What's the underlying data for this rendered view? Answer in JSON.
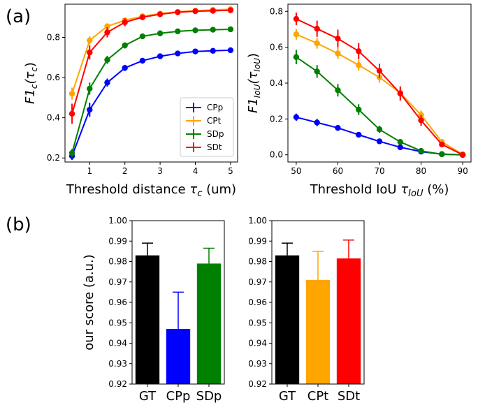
{
  "panel_labels": [
    "(a)",
    "(b)"
  ],
  "chart_data": [
    {
      "type": "line",
      "panel": "(a)",
      "xlabel": "Threshold distance τc (um)",
      "xlabel_main": "Threshold distance ",
      "xlabel_symbol": "τ",
      "xlabel_sub": "c",
      "xlabel_unit": " (um)",
      "ylabel": "F1c(τc)",
      "ylabel_main": "F1",
      "ylabel_sub": "c",
      "ylabel_paren_open": "(τ",
      "ylabel_paren_sub": "c",
      "ylabel_paren_close": ")",
      "xlim": [
        0.3,
        5.2
      ],
      "ylim": [
        0.18,
        0.965
      ],
      "xticks": [
        1,
        2,
        3,
        4,
        5
      ],
      "yticks": [
        0.2,
        0.4,
        0.6,
        0.8
      ],
      "x": [
        0.5,
        1.0,
        1.5,
        2.0,
        2.5,
        3.0,
        3.5,
        4.0,
        4.5,
        5.0
      ],
      "legend_position": "lower-right",
      "series": [
        {
          "name": "CPp",
          "color": "#0000ff",
          "values": [
            0.21,
            0.44,
            0.575,
            0.648,
            0.684,
            0.706,
            0.72,
            0.73,
            0.733,
            0.736
          ],
          "errors": [
            0.02,
            0.035,
            0.02,
            0.015,
            0.01,
            0.01,
            0.008,
            0.008,
            0.006,
            0.006
          ]
        },
        {
          "name": "CPt",
          "color": "#ffa500",
          "values": [
            0.52,
            0.785,
            0.855,
            0.885,
            0.905,
            0.918,
            0.927,
            0.933,
            0.937,
            0.94
          ],
          "errors": [
            0.03,
            0.02,
            0.015,
            0.012,
            0.01,
            0.01,
            0.008,
            0.008,
            0.006,
            0.006
          ]
        },
        {
          "name": "SDp",
          "color": "#008000",
          "values": [
            0.225,
            0.545,
            0.688,
            0.76,
            0.805,
            0.82,
            0.83,
            0.835,
            0.838,
            0.84
          ],
          "errors": [
            0.02,
            0.03,
            0.02,
            0.015,
            0.012,
            0.01,
            0.008,
            0.008,
            0.006,
            0.006
          ]
        },
        {
          "name": "SDt",
          "color": "#ff0000",
          "values": [
            0.42,
            0.725,
            0.825,
            0.875,
            0.9,
            0.915,
            0.925,
            0.93,
            0.932,
            0.935
          ],
          "errors": [
            0.05,
            0.035,
            0.025,
            0.02,
            0.015,
            0.01,
            0.008,
            0.008,
            0.006,
            0.006
          ]
        }
      ]
    },
    {
      "type": "line",
      "panel": "(a)",
      "xlabel": "Threshold IoU τIoU (%)",
      "xlabel_main": "Threshold IoU ",
      "xlabel_symbol": "τ",
      "xlabel_sub": "IoU",
      "xlabel_unit": " (%)",
      "ylabel": "F1IoU(τIoU)",
      "ylabel_main": "F1",
      "ylabel_sub": "IoU",
      "ylabel_paren_open": "(τ",
      "ylabel_paren_sub": "IoU",
      "ylabel_paren_close": ")",
      "xlim": [
        48,
        92
      ],
      "ylim": [
        -0.04,
        0.84
      ],
      "xticks": [
        50,
        60,
        70,
        80,
        90
      ],
      "yticks": [
        0.0,
        0.2,
        0.4,
        0.6,
        0.8
      ],
      "x": [
        50,
        55,
        60,
        65,
        70,
        75,
        80,
        85,
        90
      ],
      "series": [
        {
          "name": "CPp",
          "color": "#0000ff",
          "values": [
            0.21,
            0.18,
            0.15,
            0.112,
            0.075,
            0.042,
            0.018,
            0.004,
            0.0
          ],
          "errors": [
            0.02,
            0.02,
            0.015,
            0.012,
            0.01,
            0.008,
            0.006,
            0.004,
            0.002
          ]
        },
        {
          "name": "CPt",
          "color": "#ffa500",
          "values": [
            0.672,
            0.622,
            0.565,
            0.5,
            0.432,
            0.345,
            0.222,
            0.072,
            0.003
          ],
          "errors": [
            0.03,
            0.03,
            0.03,
            0.03,
            0.03,
            0.03,
            0.025,
            0.015,
            0.005
          ]
        },
        {
          "name": "SDp",
          "color": "#008000",
          "values": [
            0.545,
            0.465,
            0.36,
            0.252,
            0.142,
            0.072,
            0.022,
            0.003,
            0.0
          ],
          "errors": [
            0.04,
            0.035,
            0.035,
            0.03,
            0.02,
            0.01,
            0.008,
            0.004,
            0.002
          ]
        },
        {
          "name": "SDt",
          "color": "#ff0000",
          "values": [
            0.758,
            0.703,
            0.648,
            0.578,
            0.468,
            0.342,
            0.192,
            0.058,
            0.0
          ],
          "errors": [
            0.035,
            0.045,
            0.05,
            0.045,
            0.04,
            0.04,
            0.03,
            0.015,
            0.005
          ]
        }
      ]
    },
    {
      "type": "bar",
      "panel": "(b)",
      "ylabel": "our score (a.u.)",
      "ylim": [
        0.92,
        1.0
      ],
      "yticks": [
        0.92,
        0.93,
        0.94,
        0.95,
        0.96,
        0.97,
        0.98,
        0.99,
        1.0
      ],
      "categories": [
        "GT",
        "CPp",
        "SDp"
      ],
      "values": [
        0.983,
        0.947,
        0.979
      ],
      "errors": [
        0.006,
        0.018,
        0.0075
      ],
      "colors": [
        "#000000",
        "#0000ff",
        "#008000"
      ]
    },
    {
      "type": "bar",
      "panel": "(b)",
      "ylabel": "",
      "ylim": [
        0.92,
        1.0
      ],
      "yticks": [
        0.92,
        0.93,
        0.94,
        0.95,
        0.96,
        0.97,
        0.98,
        0.99,
        1.0
      ],
      "categories": [
        "GT",
        "CPt",
        "SDt"
      ],
      "values": [
        0.983,
        0.971,
        0.9815
      ],
      "errors": [
        0.006,
        0.014,
        0.009
      ],
      "colors": [
        "#000000",
        "#ffa500",
        "#ff0000"
      ]
    }
  ]
}
